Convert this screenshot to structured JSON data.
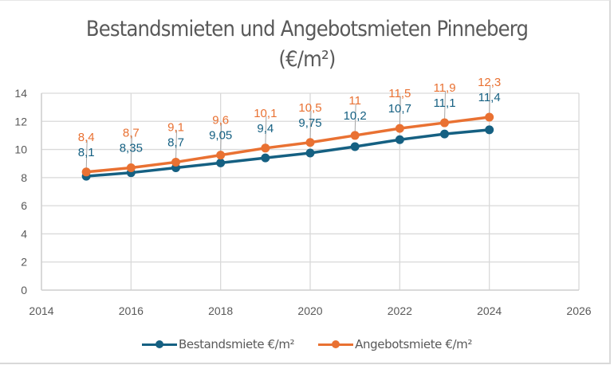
{
  "chart_data": {
    "type": "line",
    "title": "Bestandsmieten und Angebotsmieten Pinneberg",
    "subtitle": "(€/m²)",
    "xlabel": "",
    "ylabel": "",
    "xlim": [
      2014,
      2026
    ],
    "ylim": [
      0,
      14
    ],
    "x_ticks": [
      "2014",
      "2016",
      "2018",
      "2020",
      "2022",
      "2024",
      "2026"
    ],
    "y_ticks": [
      "0",
      "2",
      "4",
      "6",
      "8",
      "10",
      "12",
      "14"
    ],
    "grid": true,
    "legend_position": "bottom",
    "x": [
      2015,
      2016,
      2017,
      2018,
      2019,
      2020,
      2021,
      2022,
      2023,
      2024
    ],
    "series": [
      {
        "name": "Bestandsmiete €/m²",
        "color": "#156082",
        "values": [
          8.1,
          8.35,
          8.7,
          9.05,
          9.4,
          9.75,
          10.2,
          10.7,
          11.1,
          11.4
        ],
        "labels": [
          "8,1",
          "8,35",
          "8,7",
          "9,05",
          "9,4",
          "9,75",
          "10,2",
          "10,7",
          "11,1",
          "11,4"
        ]
      },
      {
        "name": "Angebotsmiete €/m²",
        "color": "#e97132",
        "values": [
          8.4,
          8.7,
          9.1,
          9.6,
          10.1,
          10.5,
          11.0,
          11.5,
          11.9,
          12.3
        ],
        "labels": [
          "8,4",
          "8,7",
          "9,1",
          "9,6",
          "10,1",
          "10,5",
          "11",
          "11,5",
          "11,9",
          "12,3"
        ]
      }
    ]
  }
}
